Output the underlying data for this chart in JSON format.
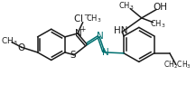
{
  "bg_color": "#ffffff",
  "line_color": "#1a1a1a",
  "teal_color": "#007070",
  "bond_lw": 1.1,
  "fig_w": 2.17,
  "fig_h": 0.94,
  "dpi": 100,
  "xlim": [
    0,
    217
  ],
  "ylim": [
    0,
    94
  ]
}
